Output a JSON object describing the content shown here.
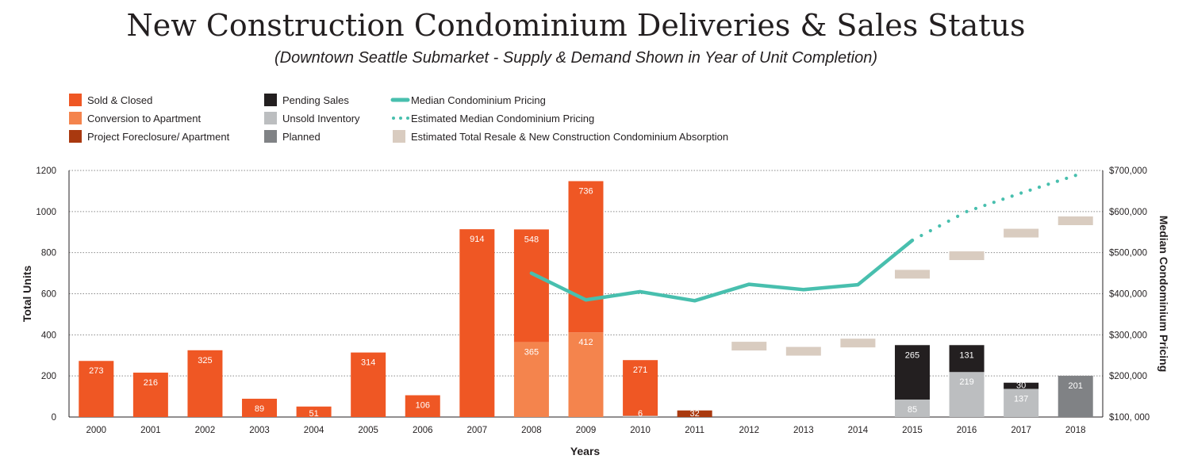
{
  "chart_data": {
    "type": "bar",
    "title": "New Construction Condominium Deliveries & Sales Status",
    "subtitle": "(Downtown Seattle Submarket - Supply & Demand Shown in Year of Unit Completion)",
    "xlabel": "Years",
    "ylabel": "Total Units",
    "y2label": "Median Condominium Pricing",
    "ylim": [
      0,
      1200
    ],
    "yticks": [
      0,
      200,
      400,
      600,
      800,
      1000,
      1200
    ],
    "y2lim": [
      100000,
      700000
    ],
    "y2ticks": [
      "$100, 000",
      "$200,000",
      "$300,000",
      "$400,000",
      "$500,000",
      "$600,000",
      "$700,000"
    ],
    "categories": [
      "2000",
      "2001",
      "2002",
      "2003",
      "2004",
      "2005",
      "2006",
      "2007",
      "2008",
      "2009",
      "2010",
      "2011",
      "2012",
      "2013",
      "2014",
      "2015",
      "2016",
      "2017",
      "2018"
    ],
    "colors": {
      "sold": "#ef5724",
      "conversion": "#f4844d",
      "foreclosure": "#a9390f",
      "pending": "#231f20",
      "unsold": "#bcbec0",
      "planned": "#808285",
      "median": "#48bfae",
      "absorption": "#d9ccc0"
    },
    "legend": [
      {
        "key": "sold",
        "label": "Sold & Closed",
        "kind": "box"
      },
      {
        "key": "conversion",
        "label": "Conversion to Apartment",
        "kind": "box"
      },
      {
        "key": "foreclosure",
        "label": "Project Foreclosure/ Apartment",
        "kind": "box"
      },
      {
        "key": "pending",
        "label": "Pending Sales",
        "kind": "box"
      },
      {
        "key": "unsold",
        "label": "Unsold Inventory",
        "kind": "box"
      },
      {
        "key": "planned",
        "label": "Planned",
        "kind": "box"
      },
      {
        "key": "median",
        "label": "Median Condominium Pricing",
        "kind": "line"
      },
      {
        "key": "median",
        "label": "Estimated Median Condominium Pricing",
        "kind": "dots"
      },
      {
        "key": "absorption",
        "label": "Estimated Total Resale & New Construction Condominium Absorption",
        "kind": "box"
      }
    ],
    "series": [
      {
        "name": "Sold & Closed",
        "key": "sold",
        "values": [
          273,
          216,
          325,
          89,
          51,
          314,
          106,
          914,
          548,
          736,
          271,
          0,
          0,
          0,
          0,
          0,
          0,
          0,
          0
        ]
      },
      {
        "name": "Conversion to Apartment",
        "key": "conversion",
        "values": [
          0,
          0,
          0,
          0,
          0,
          0,
          0,
          0,
          365,
          412,
          0,
          0,
          0,
          0,
          0,
          0,
          0,
          0,
          0
        ]
      },
      {
        "name": "Project Foreclosure/ Apartment",
        "key": "foreclosure",
        "values": [
          0,
          0,
          0,
          0,
          0,
          0,
          0,
          0,
          0,
          0,
          0,
          32,
          0,
          0,
          0,
          0,
          0,
          0,
          0
        ]
      },
      {
        "name": "Pending Sales",
        "key": "pending",
        "values": [
          0,
          0,
          0,
          0,
          0,
          0,
          0,
          0,
          0,
          0,
          0,
          0,
          0,
          0,
          0,
          265,
          131,
          30,
          0
        ]
      },
      {
        "name": "Unsold Inventory",
        "key": "unsold",
        "values": [
          0,
          0,
          0,
          0,
          0,
          0,
          0,
          0,
          0,
          0,
          6,
          0,
          0,
          0,
          0,
          85,
          219,
          137,
          0
        ]
      },
      {
        "name": "Planned",
        "key": "planned",
        "values": [
          0,
          0,
          0,
          0,
          0,
          0,
          0,
          0,
          0,
          0,
          0,
          0,
          0,
          0,
          0,
          0,
          0,
          0,
          201
        ]
      }
    ],
    "median_pricing": {
      "actual": [
        {
          "x": "2008",
          "y": 450000
        },
        {
          "x": "2009",
          "y": 385000
        },
        {
          "x": "2010",
          "y": 405000
        },
        {
          "x": "2011",
          "y": 383000
        },
        {
          "x": "2012",
          "y": 423000
        },
        {
          "x": "2013",
          "y": 410000
        },
        {
          "x": "2014",
          "y": 422000
        },
        {
          "x": "2015",
          "y": 530000
        }
      ],
      "estimated": [
        {
          "x": "2015",
          "y": 530000
        },
        {
          "x": "2016",
          "y": 600000
        },
        {
          "x": "2017",
          "y": 645000
        },
        {
          "x": "2018",
          "y": 688000
        }
      ]
    },
    "absorption": [
      {
        "x": "2012",
        "y": 345
      },
      {
        "x": "2013",
        "y": 320
      },
      {
        "x": "2014",
        "y": 360
      },
      {
        "x": "2015",
        "y": 695
      },
      {
        "x": "2016",
        "y": 785
      },
      {
        "x": "2017",
        "y": 895
      },
      {
        "x": "2018",
        "y": 955
      }
    ]
  }
}
